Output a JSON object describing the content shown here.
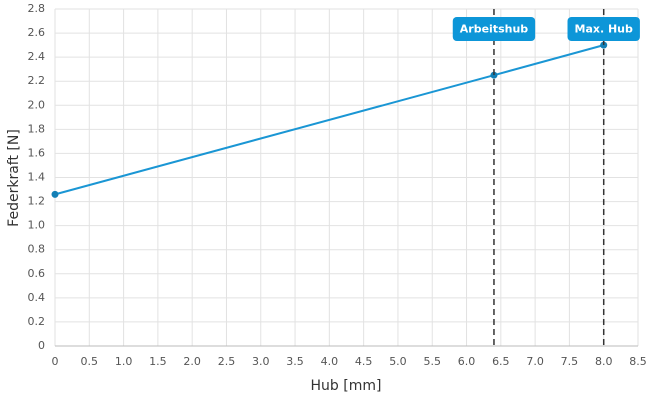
{
  "chart_data": {
    "type": "line",
    "x_label": "Hub [mm]",
    "y_label": "Federkraft [N]",
    "x": [
      0,
      6.4,
      8
    ],
    "series": [
      {
        "name": "Federkraft",
        "color": "#1a96d4",
        "values": [
          1.26,
          2.25,
          2.5
        ]
      }
    ],
    "xlim": [
      0,
      8.5
    ],
    "xticks": [
      0,
      0.5,
      {
        "value": 1,
        "label": "1.0"
      },
      1.5,
      {
        "value": 2,
        "label": "2.0"
      },
      2.5,
      {
        "value": 3,
        "label": "3.0"
      },
      3.5,
      {
        "value": 4,
        "label": "4.0"
      },
      4.5,
      {
        "value": 5,
        "label": "5.0"
      },
      5.5,
      {
        "value": 6,
        "label": "6.0"
      },
      6.5,
      {
        "value": 7,
        "label": "7.0"
      },
      7.5,
      {
        "value": 8,
        "label": "8.0"
      },
      8.5
    ],
    "ylim": [
      0,
      2.8
    ],
    "yticks": [
      0,
      0.2,
      0.4,
      0.6,
      0.8,
      {
        "value": 1,
        "label": "1.0"
      },
      1.2,
      1.4,
      1.6,
      1.8,
      {
        "value": 2,
        "label": "2.0"
      },
      2.2,
      2.4,
      2.6,
      2.8
    ],
    "grid": true,
    "annotations": [
      {
        "x": 6.4,
        "label": "Arbeitshub"
      },
      {
        "x": 8,
        "label": "Max. Hub"
      }
    ],
    "annotation_color": "#0d96d8"
  }
}
